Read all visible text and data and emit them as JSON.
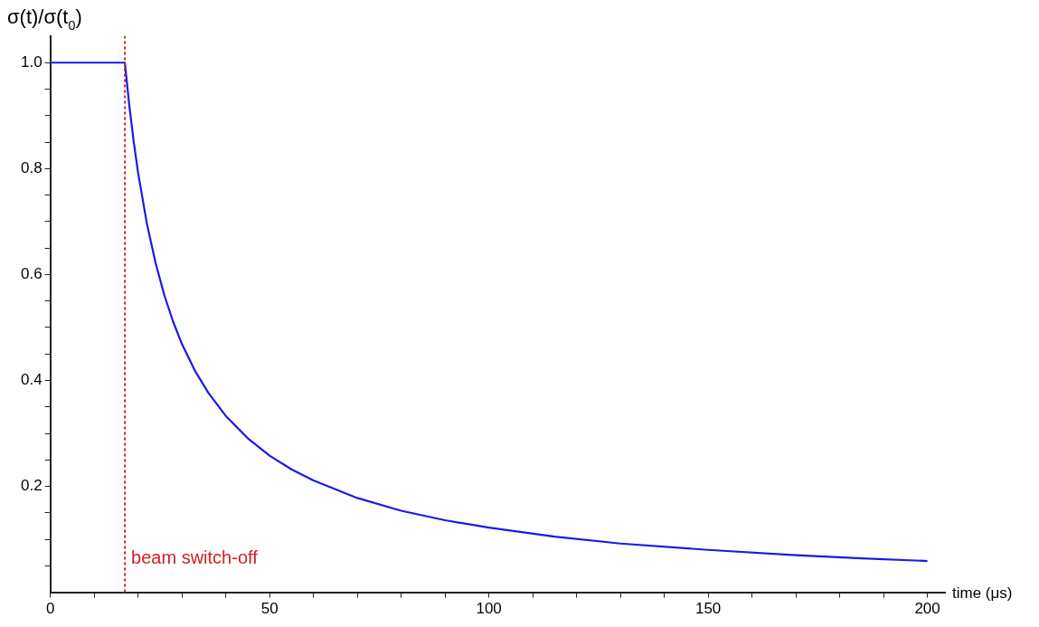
{
  "chart_data": {
    "type": "line",
    "xlabel": "time (μs)",
    "ylabel": "σ(t)/σ(t$_{0}$)",
    "x": [
      0,
      17,
      18,
      19,
      20,
      22,
      24,
      26,
      28,
      30,
      33,
      36,
      40,
      45,
      50,
      55,
      60,
      70,
      80,
      90,
      100,
      115,
      130,
      150,
      170,
      185,
      200
    ],
    "series": [
      {
        "color": "#1a1ae6",
        "values": [
          1.0,
          1.0,
          0.92,
          0.852,
          0.793,
          0.697,
          0.622,
          0.561,
          0.511,
          0.469,
          0.418,
          0.377,
          0.333,
          0.291,
          0.258,
          0.232,
          0.211,
          0.178,
          0.154,
          0.136,
          0.122,
          0.105,
          0.092,
          0.08,
          0.07,
          0.064,
          0.059
        ]
      }
    ],
    "xlim": [
      0,
      204
    ],
    "xticks": [
      0,
      {
        "value": 10,
        "label": null
      },
      {
        "value": 20,
        "label": null
      },
      {
        "value": 30,
        "label": null
      },
      {
        "value": 40,
        "label": null
      },
      50,
      {
        "value": 60,
        "label": null
      },
      {
        "value": 70,
        "label": null
      },
      {
        "value": 80,
        "label": null
      },
      {
        "value": 90,
        "label": null
      },
      100,
      {
        "value": 110,
        "label": null
      },
      {
        "value": 120,
        "label": null
      },
      {
        "value": 130,
        "label": null
      },
      {
        "value": 140,
        "label": null
      },
      150,
      {
        "value": 160,
        "label": null
      },
      {
        "value": 170,
        "label": null
      },
      {
        "value": 180,
        "label": null
      },
      {
        "value": 190,
        "label": null
      },
      200
    ],
    "ylim": [
      0,
      1.05
    ],
    "yticks": [
      {
        "value": 0.05,
        "label": null
      },
      {
        "value": 0.1,
        "label": null
      },
      {
        "value": 0.15,
        "label": null
      },
      {
        "value": 0.2,
        "label": "0.2"
      },
      {
        "value": 0.25,
        "label": null
      },
      {
        "value": 0.3,
        "label": null
      },
      {
        "value": 0.35,
        "label": null
      },
      {
        "value": 0.4,
        "label": "0.4"
      },
      {
        "value": 0.45,
        "label": null
      },
      {
        "value": 0.5,
        "label": null
      },
      {
        "value": 0.55,
        "label": null
      },
      {
        "value": 0.6,
        "label": "0.6"
      },
      {
        "value": 0.65,
        "label": null
      },
      {
        "value": 0.7,
        "label": null
      },
      {
        "value": 0.75,
        "label": null
      },
      {
        "value": 0.8,
        "label": "0.8"
      },
      {
        "value": 0.85,
        "label": null
      },
      {
        "value": 0.9,
        "label": null
      },
      {
        "value": 0.95,
        "label": null
      },
      {
        "value": 1.0,
        "label": "1.0"
      }
    ],
    "ref_lines": [
      {
        "axis": "x",
        "value": 17,
        "label": "beam switch-off",
        "color": "#d42020",
        "line_style": "dotted"
      }
    ],
    "grid": false,
    "legend": false,
    "marker": "none",
    "line_style": "solid"
  }
}
